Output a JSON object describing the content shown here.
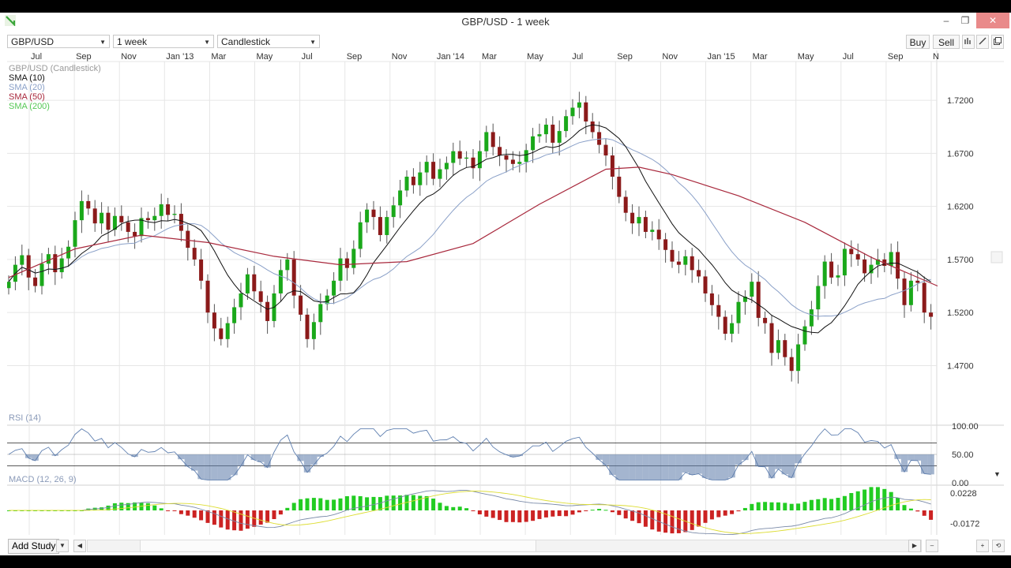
{
  "window": {
    "title": "GBP/USD - 1 week",
    "minimize_glyph": "–",
    "restore_glyph": "❐",
    "close_glyph": "✕"
  },
  "toolbar": {
    "symbol": "GBP/USD",
    "interval": "1 week",
    "chart_type": "Candlestick",
    "buy_label": "Buy",
    "sell_label": "Sell"
  },
  "legend": {
    "price": "GBP/USD (Candlestick)",
    "sma10": "SMA (10)",
    "sma20": "SMA (20)",
    "sma50": "SMA (50)",
    "sma200": "SMA (200)",
    "rsi": "RSI (14)",
    "macd": "MACD (12, 26, 9)"
  },
  "colors": {
    "up": "#1aa81a",
    "down": "#8b1a1a",
    "sma10": "#111111",
    "sma20": "#8aa0c8",
    "sma50": "#a8283c",
    "sma200": "#66cc66",
    "rsi": "#6080b0",
    "macd_line": "#7a8aa8",
    "macd_signal": "#dddd33",
    "grid": "#e6e6e6"
  },
  "bottombar": {
    "add_study": "Add Study"
  },
  "chart_data": {
    "type": "candlestick",
    "title": "GBP/USD - 1 week",
    "x_tick_labels": [
      "Jul",
      "Sep",
      "Nov",
      "Jan '13",
      "Mar",
      "May",
      "Jul",
      "Sep",
      "Nov",
      "Jan '14",
      "Mar",
      "May",
      "Jul",
      "Sep",
      "Nov",
      "Jan '15",
      "Mar",
      "May",
      "Jul",
      "Sep",
      "N"
    ],
    "price_axis": {
      "ticks": [
        1.72,
        1.67,
        1.62,
        1.57,
        1.52,
        1.47
      ],
      "tick_labels": [
        "1.7200",
        "1.6700",
        "1.6200",
        "1.5700",
        "1.5200",
        "1.4700"
      ],
      "ylim": [
        1.425,
        1.755
      ]
    },
    "price_closes": [
      1.549,
      1.565,
      1.574,
      1.553,
      1.545,
      1.566,
      1.575,
      1.558,
      1.571,
      1.582,
      1.607,
      1.625,
      1.618,
      1.604,
      1.614,
      1.598,
      1.611,
      1.605,
      1.596,
      1.592,
      1.609,
      1.607,
      1.611,
      1.622,
      1.612,
      1.613,
      1.597,
      1.581,
      1.57,
      1.55,
      1.52,
      1.505,
      1.495,
      1.51,
      1.525,
      1.538,
      1.556,
      1.54,
      1.53,
      1.512,
      1.538,
      1.56,
      1.57,
      1.536,
      1.518,
      1.495,
      1.511,
      1.528,
      1.536,
      1.55,
      1.571,
      1.562,
      1.58,
      1.605,
      1.617,
      1.61,
      1.593,
      1.61,
      1.621,
      1.635,
      1.648,
      1.64,
      1.652,
      1.662,
      1.646,
      1.655,
      1.661,
      1.672,
      1.665,
      1.666,
      1.656,
      1.672,
      1.69,
      1.676,
      1.668,
      1.664,
      1.66,
      1.662,
      1.673,
      1.686,
      1.688,
      1.697,
      1.68,
      1.691,
      1.705,
      1.713,
      1.718,
      1.7,
      1.69,
      1.678,
      1.668,
      1.648,
      1.629,
      1.614,
      1.604,
      1.61,
      1.596,
      1.598,
      1.589,
      1.579,
      1.568,
      1.565,
      1.573,
      1.56,
      1.554,
      1.538,
      1.527,
      1.516,
      1.5,
      1.51,
      1.53,
      1.535,
      1.549,
      1.515,
      1.51,
      1.482,
      1.494,
      1.478,
      1.465,
      1.49,
      1.507,
      1.523,
      1.545,
      1.568,
      1.553,
      1.555,
      1.58,
      1.575,
      1.57,
      1.557,
      1.565,
      1.57,
      1.564,
      1.577,
      1.552,
      1.527,
      1.55,
      1.548,
      1.52,
      1.516
    ],
    "sma50_points": [
      [
        0,
        1.553
      ],
      [
        10,
        1.58
      ],
      [
        20,
        1.593
      ],
      [
        30,
        1.586
      ],
      [
        40,
        1.573
      ],
      [
        50,
        1.565
      ],
      [
        60,
        1.568
      ],
      [
        70,
        1.585
      ],
      [
        80,
        1.622
      ],
      [
        90,
        1.655
      ],
      [
        95,
        1.657
      ],
      [
        100,
        1.65
      ],
      [
        110,
        1.63
      ],
      [
        120,
        1.605
      ],
      [
        130,
        1.572
      ],
      [
        140,
        1.545
      ]
    ],
    "rsi": {
      "ticks": [
        100,
        50,
        0
      ],
      "tick_labels": [
        "100.00",
        "50.00",
        "0.00"
      ],
      "levels": [
        30,
        70
      ]
    },
    "macd": {
      "tick_labels": [
        "0.0228",
        "-0.0172"
      ],
      "ticks": [
        0.0228,
        -0.0172
      ]
    }
  }
}
